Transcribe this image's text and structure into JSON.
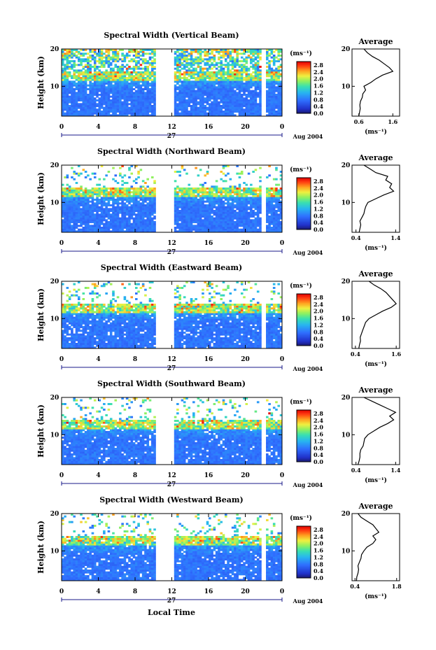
{
  "footer": {
    "xlabel": "Local Time"
  },
  "colorbar": {
    "unit_label": "(ms⁻¹)",
    "ticks": [
      "2.8",
      "2.4",
      "2.0",
      "1.6",
      "1.2",
      "0.8",
      "0.4",
      "0.0"
    ],
    "range": [
      0.0,
      3.0
    ]
  },
  "chart_data": [
    {
      "type": "heatmap",
      "title": "Spectral Width (Vertical Beam)",
      "xlabel": "",
      "ylabel": "Height (km)",
      "x_ticks": [
        "0",
        "4",
        "8",
        "12",
        "16",
        "20",
        "0"
      ],
      "y_ticks": [
        "20",
        "10"
      ],
      "day_label": "27",
      "date_label": "Aug 2004",
      "xlim": [
        0,
        24
      ],
      "ylim": [
        2,
        20
      ],
      "data_gaps_hours": [
        [
          10.3,
          12.3
        ],
        [
          21.8,
          22.2
        ]
      ],
      "profile": {
        "title": "Average",
        "xlabel": "(ms⁻¹)",
        "x_ticks": [
          "0.6",
          "1.6"
        ],
        "xlim": [
          0.4,
          1.8
        ],
        "y_ticks": [
          "20",
          "10"
        ],
        "ylim": [
          2,
          20
        ],
        "height_km": [
          2,
          3,
          4,
          5,
          6,
          7,
          8,
          9,
          10,
          11,
          12,
          13,
          14,
          15,
          16,
          17,
          18,
          19,
          20
        ],
        "values": [
          0.6,
          0.62,
          0.64,
          0.63,
          0.65,
          0.7,
          0.72,
          0.8,
          0.75,
          0.95,
          1.1,
          1.3,
          1.6,
          1.5,
          1.35,
          1.2,
          1.0,
          0.85,
          0.75
        ]
      }
    },
    {
      "type": "heatmap",
      "title": "Spectral Width (Northward Beam)",
      "xlabel": "",
      "ylabel": "Height (km)",
      "x_ticks": [
        "0",
        "4",
        "8",
        "12",
        "16",
        "20",
        "0"
      ],
      "y_ticks": [
        "20",
        "10"
      ],
      "day_label": "27",
      "date_label": "Aug 2004",
      "xlim": [
        0,
        24
      ],
      "ylim": [
        2,
        20
      ],
      "data_gaps_hours": [
        [
          10.3,
          12.3
        ],
        [
          21.8,
          22.2
        ]
      ],
      "profile": {
        "title": "Average",
        "xlabel": "(ms⁻¹)",
        "x_ticks": [
          "0.4",
          "1.4"
        ],
        "xlim": [
          0.3,
          1.5
        ],
        "y_ticks": [
          "20",
          "10"
        ],
        "ylim": [
          2,
          20
        ],
        "height_km": [
          2,
          3,
          4,
          5,
          6,
          7,
          8,
          9,
          10,
          11,
          12,
          13,
          14,
          15,
          16,
          17,
          18,
          19,
          20
        ],
        "values": [
          0.48,
          0.5,
          0.52,
          0.5,
          0.55,
          0.6,
          0.62,
          0.65,
          0.7,
          0.9,
          1.1,
          1.35,
          1.25,
          1.3,
          1.15,
          1.2,
          0.9,
          0.75,
          0.6
        ]
      }
    },
    {
      "type": "heatmap",
      "title": "Spectral Width (Eastward Beam)",
      "xlabel": "",
      "ylabel": "Height (km)",
      "x_ticks": [
        "0",
        "4",
        "8",
        "12",
        "16",
        "20",
        "0"
      ],
      "y_ticks": [
        "20",
        "10"
      ],
      "day_label": "27",
      "date_label": "Aug 2004",
      "xlim": [
        0,
        24
      ],
      "ylim": [
        2,
        20
      ],
      "data_gaps_hours": [
        [
          10.3,
          12.3
        ],
        [
          21.8,
          22.2
        ]
      ],
      "profile": {
        "title": "Average",
        "xlabel": "(ms⁻¹)",
        "x_ticks": [
          "0.4",
          "1.6"
        ],
        "xlim": [
          0.3,
          1.7
        ],
        "y_ticks": [
          "20",
          "10"
        ],
        "ylim": [
          2,
          20
        ],
        "height_km": [
          2,
          3,
          4,
          5,
          6,
          7,
          8,
          9,
          10,
          11,
          12,
          13,
          14,
          15,
          16,
          17,
          18,
          19,
          20
        ],
        "values": [
          0.5,
          0.52,
          0.55,
          0.54,
          0.58,
          0.62,
          0.66,
          0.7,
          0.8,
          1.0,
          1.2,
          1.45,
          1.6,
          1.5,
          1.4,
          1.3,
          1.15,
          0.95,
          0.8
        ]
      }
    },
    {
      "type": "heatmap",
      "title": "Spectral Width (Southward Beam)",
      "xlabel": "",
      "ylabel": "Height (km)",
      "x_ticks": [
        "0",
        "4",
        "8",
        "12",
        "16",
        "20",
        "0"
      ],
      "y_ticks": [
        "20",
        "10"
      ],
      "day_label": "27",
      "date_label": "Aug 2004",
      "xlim": [
        0,
        24
      ],
      "ylim": [
        2,
        20
      ],
      "data_gaps_hours": [
        [
          10.3,
          12.3
        ],
        [
          21.8,
          22.2
        ]
      ],
      "profile": {
        "title": "Average",
        "xlabel": "(ms⁻¹)",
        "x_ticks": [
          "0.4",
          "1.4"
        ],
        "xlim": [
          0.3,
          1.5
        ],
        "y_ticks": [
          "20",
          "10"
        ],
        "ylim": [
          2,
          20
        ],
        "height_km": [
          2,
          3,
          4,
          5,
          6,
          7,
          8,
          9,
          10,
          11,
          12,
          13,
          14,
          15,
          16,
          17,
          18,
          19,
          20
        ],
        "values": [
          0.45,
          0.48,
          0.5,
          0.5,
          0.52,
          0.58,
          0.6,
          0.62,
          0.7,
          0.85,
          1.0,
          1.2,
          1.35,
          1.25,
          1.4,
          1.2,
          1.0,
          0.8,
          0.6
        ]
      }
    },
    {
      "type": "heatmap",
      "title": "Spectral Width (Westward Beam)",
      "xlabel": "",
      "ylabel": "Height (km)",
      "x_ticks": [
        "0",
        "4",
        "8",
        "12",
        "16",
        "20",
        "0"
      ],
      "y_ticks": [
        "20",
        "10"
      ],
      "day_label": "27",
      "date_label": "Aug 2004",
      "xlim": [
        0,
        24
      ],
      "ylim": [
        2,
        20
      ],
      "data_gaps_hours": [
        [
          10.3,
          12.3
        ],
        [
          21.8,
          22.2
        ]
      ],
      "profile": {
        "title": "Average",
        "xlabel": "(ms⁻¹)",
        "x_ticks": [
          "0.4",
          "1.8"
        ],
        "xlim": [
          0.3,
          1.9
        ],
        "y_ticks": [
          "20",
          "10"
        ],
        "ylim": [
          2,
          20
        ],
        "height_km": [
          2,
          3,
          4,
          5,
          6,
          7,
          8,
          9,
          10,
          11,
          12,
          13,
          14,
          15,
          16,
          17,
          18,
          19,
          20
        ],
        "values": [
          0.45,
          0.46,
          0.5,
          0.52,
          0.5,
          0.55,
          0.6,
          0.62,
          0.7,
          0.8,
          1.0,
          1.1,
          1.0,
          1.2,
          1.1,
          1.0,
          0.8,
          0.6,
          0.5
        ]
      }
    }
  ]
}
